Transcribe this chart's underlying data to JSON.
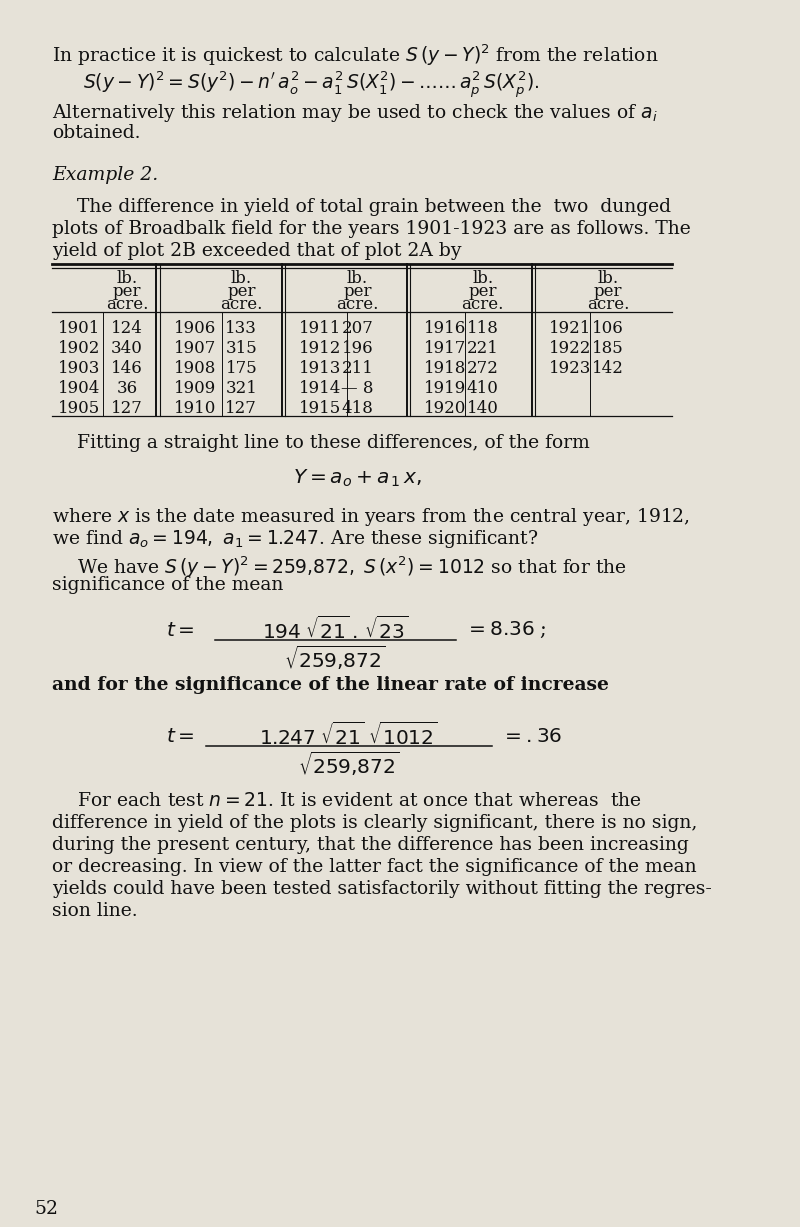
{
  "bg_color": "#e6e2d8",
  "page_number": "52",
  "fs_body": 13.5,
  "fs_small": 12.0,
  "fs_formula": 13.5,
  "text_color": "#111111",
  "lm": 58,
  "rm": 752,
  "table_data": [
    [
      "1901",
      "124",
      "1906",
      "133",
      "1911",
      "207",
      "1916",
      "118",
      "1921",
      "106"
    ],
    [
      "1902",
      "340",
      "1907",
      "315",
      "1912",
      "196",
      "1917",
      "221",
      "1922",
      "185"
    ],
    [
      "1903",
      "146",
      "1908",
      "175",
      "1913",
      "211",
      "1918",
      "272",
      "1923",
      "142"
    ],
    [
      "1904",
      "36",
      "1909",
      "321",
      "1914",
      "— 8",
      "1919",
      "410",
      "",
      ""
    ],
    [
      "1905",
      "127",
      "1910",
      "127",
      "1915",
      "418",
      "1920",
      "140",
      "",
      ""
    ]
  ]
}
